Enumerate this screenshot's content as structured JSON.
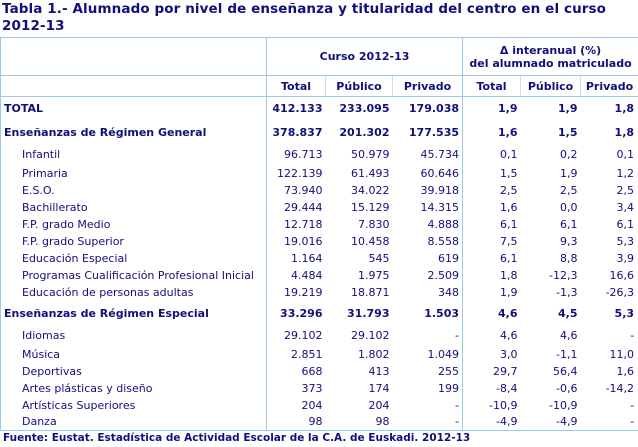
{
  "title": "Tabla 1.- Alumnado por nivel de enseñanza y titularidad del centro en el curso 2012-13",
  "header": {
    "group1": "Curso 2012-13",
    "group2_line1": "Δ  interanual (%)",
    "group2_line2": "del alumnado matriculado",
    "columns": [
      "Total",
      "Público",
      "Privado",
      "Total",
      "Público",
      "Privado"
    ]
  },
  "rows": [
    {
      "label": "TOTAL",
      "type": "total",
      "values": [
        "412.133",
        "233.095",
        "179.038",
        "1,9",
        "1,9",
        "1,8"
      ]
    },
    {
      "label": "Enseñanzas de Régimen General",
      "type": "group",
      "values": [
        "378.837",
        "201.302",
        "177.535",
        "1,6",
        "1,5",
        "1,8"
      ]
    },
    {
      "label": "Infantil",
      "type": "sub",
      "values": [
        "96.713",
        "50.979",
        "45.734",
        "0,1",
        "0,2",
        "0,1"
      ]
    },
    {
      "label": "Primaria",
      "type": "sub",
      "values": [
        "122.139",
        "61.493",
        "60.646",
        "1,5",
        "1,9",
        "1,2"
      ]
    },
    {
      "label": "E.S.O.",
      "type": "sub",
      "values": [
        "73.940",
        "34.022",
        "39.918",
        "2,5",
        "2,5",
        "2,5"
      ]
    },
    {
      "label": "Bachillerato",
      "type": "sub",
      "values": [
        "29.444",
        "15.129",
        "14.315",
        "1,6",
        "0,0",
        "3,4"
      ]
    },
    {
      "label": "F.P. grado Medio",
      "type": "sub",
      "values": [
        "12.718",
        "7.830",
        "4.888",
        "6,1",
        "6,1",
        "6,1"
      ]
    },
    {
      "label": "F.P. grado Superior",
      "type": "sub",
      "values": [
        "19.016",
        "10.458",
        "8.558",
        "7,5",
        "9,3",
        "5,3"
      ]
    },
    {
      "label": "Educación Especial",
      "type": "sub",
      "values": [
        "1.164",
        "545",
        "619",
        "6,1",
        "8,8",
        "3,9"
      ]
    },
    {
      "label": "Programas Cualificación Profesional Inicial",
      "type": "sub",
      "values": [
        "4.484",
        "1.975",
        "2.509",
        "1,8",
        "-12,3",
        "16,6"
      ]
    },
    {
      "label": "Educación de personas adultas",
      "type": "sub",
      "values": [
        "19.219",
        "18.871",
        "348",
        "1,9",
        "-1,3",
        "-26,3"
      ]
    },
    {
      "label": "Enseñanzas de Régimen Especial",
      "type": "group",
      "values": [
        "33.296",
        "31.793",
        "1.503",
        "4,6",
        "4,5",
        "5,3"
      ]
    },
    {
      "label": "Idiomas",
      "type": "sub",
      "values": [
        "29.102",
        "29.102",
        "-",
        "4,6",
        "4,6",
        "-"
      ]
    },
    {
      "label": "Música",
      "type": "sub",
      "values": [
        "2.851",
        "1.802",
        "1.049",
        "3,0",
        "-1,1",
        "11,0"
      ]
    },
    {
      "label": "Deportivas",
      "type": "sub",
      "values": [
        "668",
        "413",
        "255",
        "29,7",
        "56,4",
        "1,6"
      ]
    },
    {
      "label": "Artes plásticas y diseño",
      "type": "sub",
      "values": [
        "373",
        "174",
        "199",
        "-8,4",
        "-0,6",
        "-14,2"
      ]
    },
    {
      "label": "Artísticas Superiores",
      "type": "sub",
      "values": [
        "204",
        "204",
        "-",
        "-10,9",
        "-10,9",
        "-"
      ]
    },
    {
      "label": "Danza",
      "type": "sub",
      "values": [
        "98",
        "98",
        "-",
        "-4,9",
        "-4,9",
        "-"
      ]
    }
  ],
  "footer": "Fuente: Eustat. Estadística de Actividad Escolar de la C.A. de Euskadi. 2012-13"
}
